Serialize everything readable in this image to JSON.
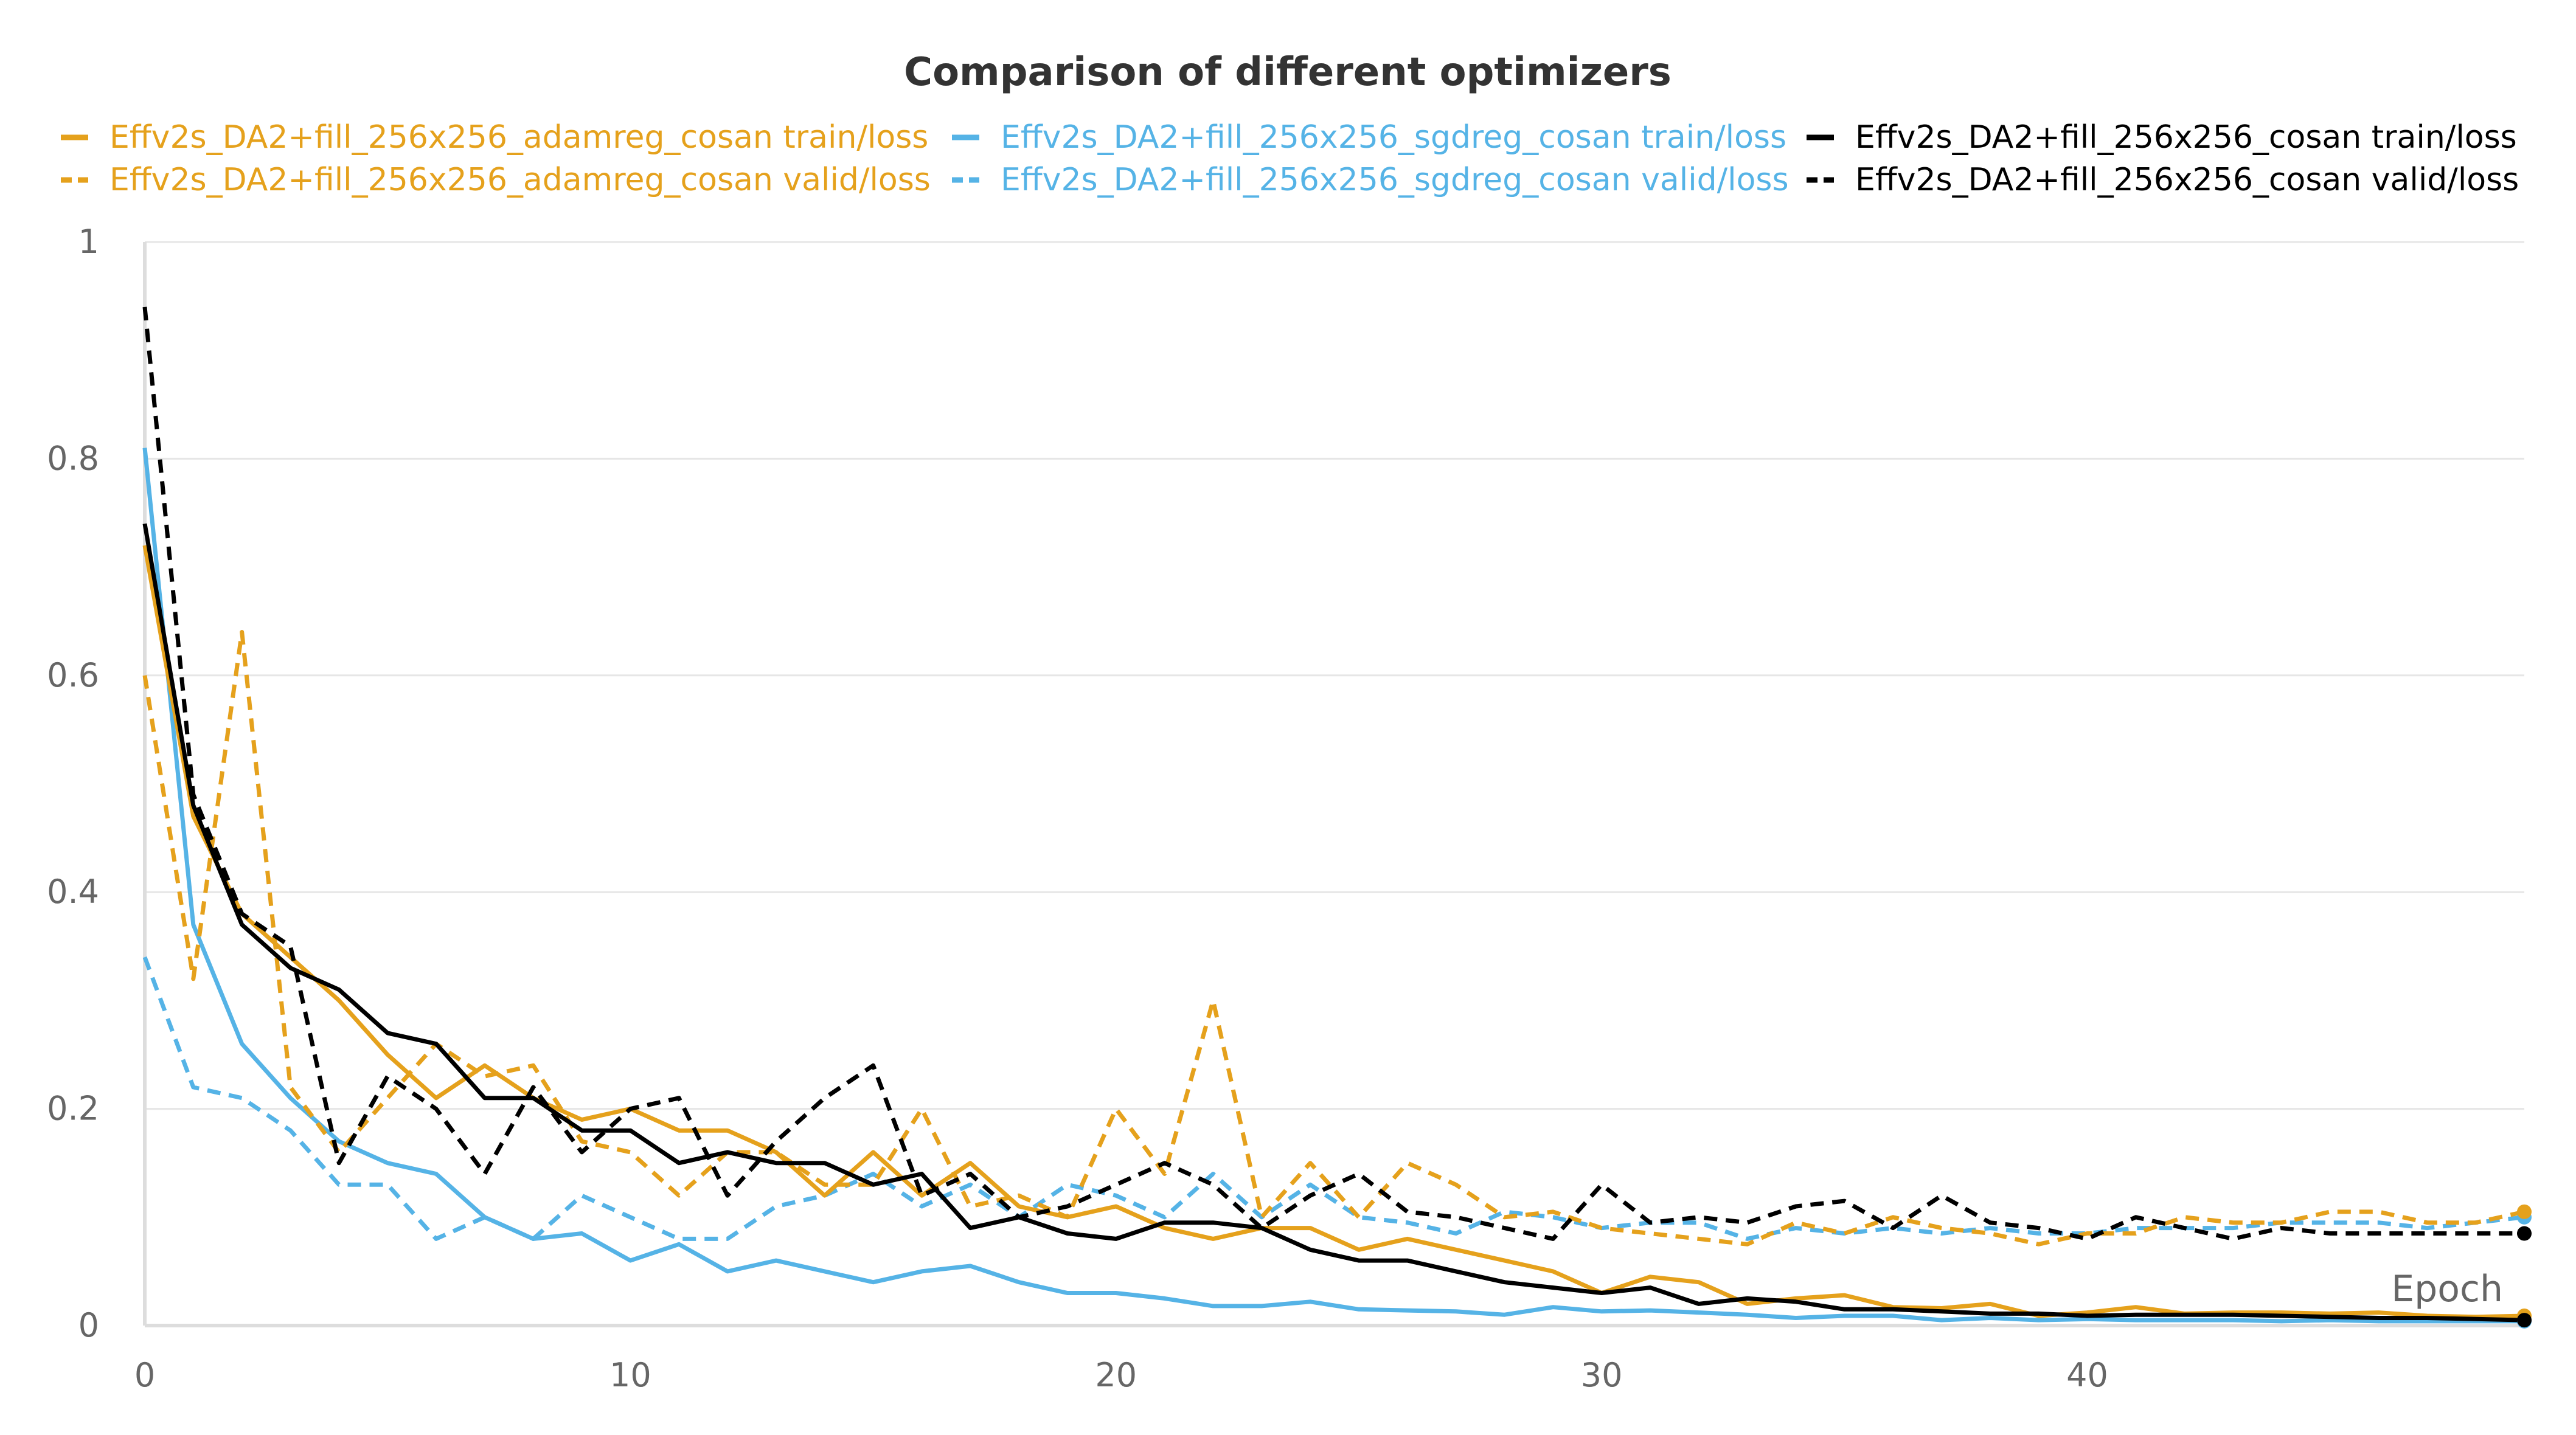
{
  "chart_data": {
    "type": "line",
    "title": "Comparison of different optimizers",
    "xlabel": "Epoch",
    "ylabel": "",
    "xlim": [
      0,
      49
    ],
    "ylim": [
      0,
      1
    ],
    "xticks": [
      0,
      10,
      20,
      30,
      40
    ],
    "yticks": [
      0,
      0.2,
      0.4,
      0.6,
      0.8,
      1
    ],
    "ytick_labels": [
      "0",
      "0.2",
      "0.4",
      "0.6",
      "0.8",
      "1"
    ],
    "grid": true,
    "legend_position": "top",
    "series": [
      {
        "name": "Effv2s_DA2+fill_256x256_adamreg_cosan train/loss",
        "color": "#e5a11c",
        "dash": "solid",
        "values": [
          0.72,
          0.47,
          0.38,
          0.34,
          0.3,
          0.25,
          0.21,
          0.24,
          0.21,
          0.19,
          0.2,
          0.18,
          0.18,
          0.16,
          0.12,
          0.16,
          0.12,
          0.15,
          0.11,
          0.1,
          0.11,
          0.09,
          0.08,
          0.09,
          0.09,
          0.07,
          0.08,
          0.07,
          0.06,
          0.05,
          0.03,
          0.045,
          0.04,
          0.02,
          0.025,
          0.028,
          0.017,
          0.016,
          0.02,
          0.009,
          0.012,
          0.017,
          0.011,
          0.012,
          0.012,
          0.011,
          0.012,
          0.009,
          0.008,
          0.009
        ]
      },
      {
        "name": "Effv2s_DA2+fill_256x256_adamreg_cosan valid/loss",
        "color": "#e5a11c",
        "dash": "dashed",
        "values": [
          0.6,
          0.32,
          0.64,
          0.22,
          0.16,
          0.21,
          0.26,
          0.23,
          0.24,
          0.17,
          0.16,
          0.12,
          0.16,
          0.16,
          0.13,
          0.13,
          0.2,
          0.11,
          0.12,
          0.1,
          0.2,
          0.14,
          0.3,
          0.1,
          0.15,
          0.1,
          0.15,
          0.13,
          0.1,
          0.105,
          0.09,
          0.085,
          0.08,
          0.075,
          0.095,
          0.085,
          0.1,
          0.09,
          0.085,
          0.075,
          0.085,
          0.085,
          0.1,
          0.095,
          0.095,
          0.105,
          0.105,
          0.095,
          0.095,
          0.105
        ]
      },
      {
        "name": "Effv2s_DA2+fill_256x256_sgdreg_cosan train/loss",
        "color": "#55b3e6",
        "dash": "solid",
        "values": [
          0.81,
          0.37,
          0.26,
          0.21,
          0.17,
          0.15,
          0.14,
          0.1,
          0.08,
          0.085,
          0.06,
          0.075,
          0.05,
          0.06,
          0.05,
          0.04,
          0.05,
          0.055,
          0.04,
          0.03,
          0.03,
          0.025,
          0.018,
          0.018,
          0.022,
          0.015,
          0.014,
          0.013,
          0.01,
          0.017,
          0.013,
          0.014,
          0.012,
          0.01,
          0.007,
          0.009,
          0.009,
          0.005,
          0.007,
          0.005,
          0.006,
          0.005,
          0.005,
          0.005,
          0.004,
          0.005,
          0.004,
          0.004,
          0.004,
          0.004
        ]
      },
      {
        "name": "Effv2s_DA2+fill_256x256_sgdreg_cosan valid/loss",
        "color": "#55b3e6",
        "dash": "dashed",
        "values": [
          0.34,
          0.22,
          0.21,
          0.18,
          0.13,
          0.13,
          0.08,
          0.1,
          0.08,
          0.12,
          0.1,
          0.08,
          0.08,
          0.11,
          0.12,
          0.14,
          0.11,
          0.13,
          0.1,
          0.13,
          0.12,
          0.1,
          0.14,
          0.1,
          0.13,
          0.1,
          0.095,
          0.085,
          0.105,
          0.1,
          0.09,
          0.095,
          0.095,
          0.08,
          0.09,
          0.085,
          0.09,
          0.085,
          0.09,
          0.085,
          0.085,
          0.09,
          0.09,
          0.09,
          0.095,
          0.095,
          0.095,
          0.09,
          0.095,
          0.1
        ]
      },
      {
        "name": "Effv2s_DA2+fill_256x256_cosan train/loss",
        "color": "#000000",
        "dash": "solid",
        "values": [
          0.74,
          0.48,
          0.37,
          0.33,
          0.31,
          0.27,
          0.26,
          0.21,
          0.21,
          0.18,
          0.18,
          0.15,
          0.16,
          0.15,
          0.15,
          0.13,
          0.14,
          0.09,
          0.1,
          0.085,
          0.08,
          0.095,
          0.095,
          0.09,
          0.07,
          0.06,
          0.06,
          0.05,
          0.04,
          0.035,
          0.03,
          0.035,
          0.02,
          0.025,
          0.022,
          0.015,
          0.015,
          0.013,
          0.011,
          0.011,
          0.009,
          0.01,
          0.01,
          0.01,
          0.009,
          0.008,
          0.007,
          0.007,
          0.006,
          0.005
        ]
      },
      {
        "name": "Effv2s_DA2+fill_256x256_cosan valid/loss",
        "color": "#000000",
        "dash": "dashed",
        "values": [
          0.94,
          0.49,
          0.38,
          0.35,
          0.15,
          0.23,
          0.2,
          0.14,
          0.22,
          0.16,
          0.2,
          0.21,
          0.12,
          0.17,
          0.21,
          0.24,
          0.12,
          0.14,
          0.1,
          0.11,
          0.13,
          0.15,
          0.13,
          0.09,
          0.12,
          0.14,
          0.105,
          0.1,
          0.09,
          0.08,
          0.13,
          0.095,
          0.1,
          0.095,
          0.11,
          0.115,
          0.09,
          0.12,
          0.095,
          0.09,
          0.08,
          0.1,
          0.09,
          0.08,
          0.09,
          0.085,
          0.085,
          0.085,
          0.085,
          0.085
        ]
      }
    ]
  }
}
